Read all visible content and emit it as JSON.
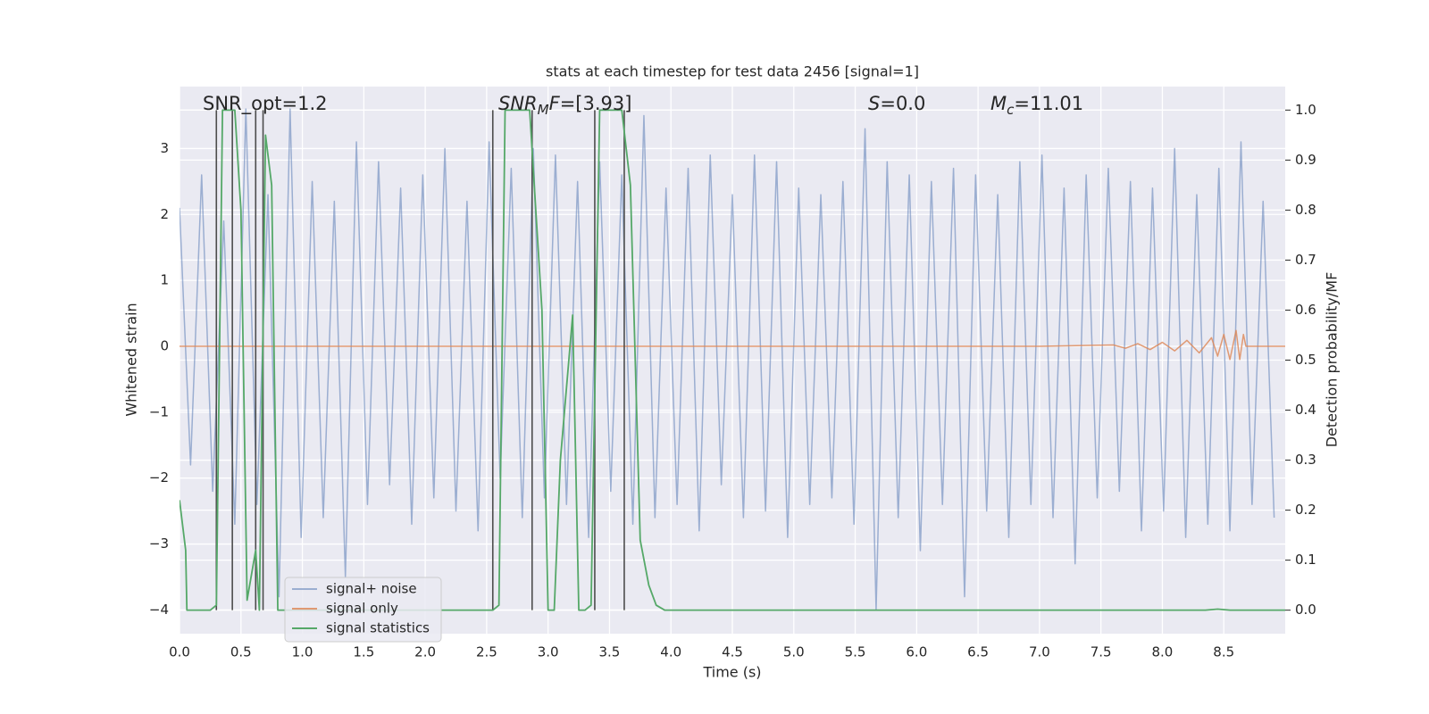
{
  "chart_data": {
    "type": "line",
    "title": "stats at each timestep for test data 2456 [signal=1]",
    "x_label": "Time (s)",
    "y_label": "Whitened strain",
    "y2_label": "Detection probability/MF",
    "background": "#eaeaf2",
    "grid": true,
    "legend": "lower left",
    "xlim": [
      0,
      9.0
    ],
    "ylim": [
      -4.36,
      3.94
    ],
    "y2lim": [
      -0.047,
      1.047
    ],
    "xticks": [
      {
        "value": 0,
        "label": "0.0"
      },
      0.5,
      {
        "value": 1,
        "label": "1.0"
      },
      1.5,
      {
        "value": 2,
        "label": "2.0"
      },
      2.5,
      {
        "value": 3,
        "label": "3.0"
      },
      3.5,
      {
        "value": 4,
        "label": "4.0"
      },
      4.5,
      {
        "value": 5,
        "label": "5.0"
      },
      5.5,
      {
        "value": 6,
        "label": "6.0"
      },
      6.5,
      {
        "value": 7,
        "label": "7.0"
      },
      7.5,
      {
        "value": 8,
        "label": "8.0"
      },
      8.5
    ],
    "yticks": [
      {
        "value": -4,
        "label": "−4"
      },
      {
        "value": -3,
        "label": "−3"
      },
      {
        "value": -2,
        "label": "−2"
      },
      {
        "value": -1,
        "label": "−1"
      },
      0,
      1,
      2,
      3
    ],
    "y2ticks": [
      {
        "value": 0,
        "label": "0.0"
      },
      0.1,
      0.2,
      0.3,
      0.4,
      0.5,
      0.6,
      0.7,
      0.8,
      0.9,
      {
        "value": 1,
        "label": "1.0"
      }
    ],
    "annotations": [
      {
        "parts": [
          {
            "t": "SNR_opt=1.2",
            "style": "normal"
          }
        ]
      },
      {
        "parts": [
          {
            "t": "SNR",
            "style": "italic"
          },
          {
            "t": "M",
            "style": "sub"
          },
          {
            "t": "F",
            "style": "italic"
          },
          {
            "t": "=[3.93]",
            "style": "normal"
          }
        ]
      },
      {
        "parts": [
          {
            "t": "S",
            "style": "italic"
          },
          {
            "t": "=0.0",
            "style": "normal"
          }
        ]
      },
      {
        "parts": [
          {
            "t": "M",
            "style": "italic"
          },
          {
            "t": "c",
            "style": "sub"
          },
          {
            "t": "=11.01",
            "style": "normal"
          }
        ]
      }
    ],
    "series": [
      {
        "name": "signal+ noise",
        "color": "#4c72b0",
        "opacity": 0.5,
        "x": [
          0,
          0.09,
          0.18,
          0.27,
          0.36,
          0.45,
          0.54,
          0.63,
          0.72,
          0.81,
          0.9,
          0.99,
          1.08,
          1.17,
          1.26,
          1.35,
          1.44,
          1.53,
          1.62,
          1.71,
          1.8,
          1.89,
          1.98,
          2.07,
          2.16,
          2.25,
          2.34,
          2.43,
          2.52,
          2.61,
          2.7,
          2.79,
          2.88,
          2.97,
          3.06,
          3.15,
          3.24,
          3.33,
          3.42,
          3.51,
          3.6,
          3.69,
          3.78,
          3.87,
          3.96,
          4.05,
          4.14,
          4.23,
          4.32,
          4.41,
          4.5,
          4.59,
          4.68,
          4.77,
          4.86,
          4.95,
          5.04,
          5.13,
          5.22,
          5.31,
          5.4,
          5.49,
          5.58,
          5.67,
          5.76,
          5.85,
          5.94,
          6.03,
          6.12,
          6.21,
          6.3,
          6.39,
          6.48,
          6.57,
          6.66,
          6.75,
          6.84,
          6.93,
          7.02,
          7.11,
          7.2,
          7.29,
          7.38,
          7.47,
          7.56,
          7.65,
          7.74,
          7.83,
          7.92,
          8.01,
          8.1,
          8.19,
          8.28,
          8.37,
          8.46,
          8.55,
          8.64,
          8.73,
          8.82,
          8.91
        ],
        "values": [
          2.1,
          -1.8,
          2.6,
          -2.2,
          1.9,
          -2.7,
          3.6,
          -2.4,
          2.3,
          -3.8,
          3.6,
          -2.9,
          2.5,
          -2.6,
          2.2,
          -3.5,
          3.1,
          -2.4,
          2.8,
          -2.1,
          2.4,
          -2.7,
          2.6,
          -2.3,
          3.0,
          -2.5,
          2.2,
          -2.8,
          3.1,
          -2.0,
          2.7,
          -2.6,
          3.0,
          -2.3,
          2.9,
          -2.4,
          2.5,
          -2.9,
          2.8,
          -2.2,
          2.6,
          -2.7,
          3.5,
          -2.6,
          2.4,
          -2.4,
          2.7,
          -2.8,
          2.9,
          -2.1,
          2.3,
          -2.6,
          2.9,
          -2.5,
          2.8,
          -2.9,
          2.4,
          -2.4,
          2.3,
          -2.3,
          2.5,
          -2.7,
          3.3,
          -4.0,
          2.8,
          -2.6,
          2.6,
          -3.1,
          2.5,
          -2.4,
          2.7,
          -3.8,
          2.6,
          -2.5,
          2.3,
          -2.9,
          2.8,
          -2.4,
          2.9,
          -2.6,
          2.4,
          -3.3,
          2.6,
          -2.3,
          2.7,
          -2.2,
          2.5,
          -2.8,
          2.4,
          -2.5,
          3.0,
          -2.9,
          2.3,
          -2.7,
          2.7,
          -2.8,
          3.1,
          -2.4,
          2.2,
          -2.6
        ]
      },
      {
        "name": "signal only",
        "color": "#dd8452",
        "opacity": 0.8,
        "x": [
          0,
          7.0,
          7.6,
          7.7,
          7.8,
          7.9,
          8.0,
          8.1,
          8.2,
          8.3,
          8.4,
          8.45,
          8.5,
          8.55,
          8.6,
          8.63,
          8.66,
          8.68,
          9.0
        ],
        "values": [
          0,
          0,
          0.02,
          -0.03,
          0.04,
          -0.05,
          0.06,
          -0.07,
          0.09,
          -0.1,
          0.13,
          -0.15,
          0.18,
          -0.2,
          0.24,
          -0.2,
          0.18,
          0,
          0
        ]
      },
      {
        "name": "signal statistics",
        "color": "#55a868",
        "opacity": 1,
        "axis": "y2",
        "x": [
          0,
          0.05,
          0.06,
          0.25,
          0.3,
          0.35,
          0.42,
          0.45,
          0.5,
          0.55,
          0.62,
          0.65,
          0.7,
          0.75,
          0.8,
          2.55,
          2.6,
          2.65,
          2.85,
          2.95,
          3.0,
          3.05,
          3.1,
          3.2,
          3.25,
          3.3,
          3.35,
          3.42,
          3.6,
          3.67,
          3.75,
          3.82,
          3.88,
          3.95,
          8.35,
          8.45,
          8.55,
          9.0
        ],
        "values": [
          0.22,
          0.12,
          0.0,
          0.0,
          0.01,
          1.0,
          1.0,
          1.0,
          0.8,
          0.02,
          0.12,
          0.0,
          0.95,
          0.85,
          0.0,
          0.0,
          0.01,
          1.0,
          1.0,
          0.6,
          0.0,
          0.0,
          0.3,
          0.59,
          0.0,
          0.0,
          0.01,
          1.0,
          1.0,
          0.85,
          0.14,
          0.05,
          0.01,
          0.0,
          0.0,
          0.002,
          0.0,
          0.0
        ]
      }
    ],
    "vlines": {
      "color": "#4d4d4d",
      "x": [
        0.3,
        0.43,
        0.62,
        0.68,
        2.55,
        2.87,
        3.38,
        3.62
      ]
    }
  }
}
